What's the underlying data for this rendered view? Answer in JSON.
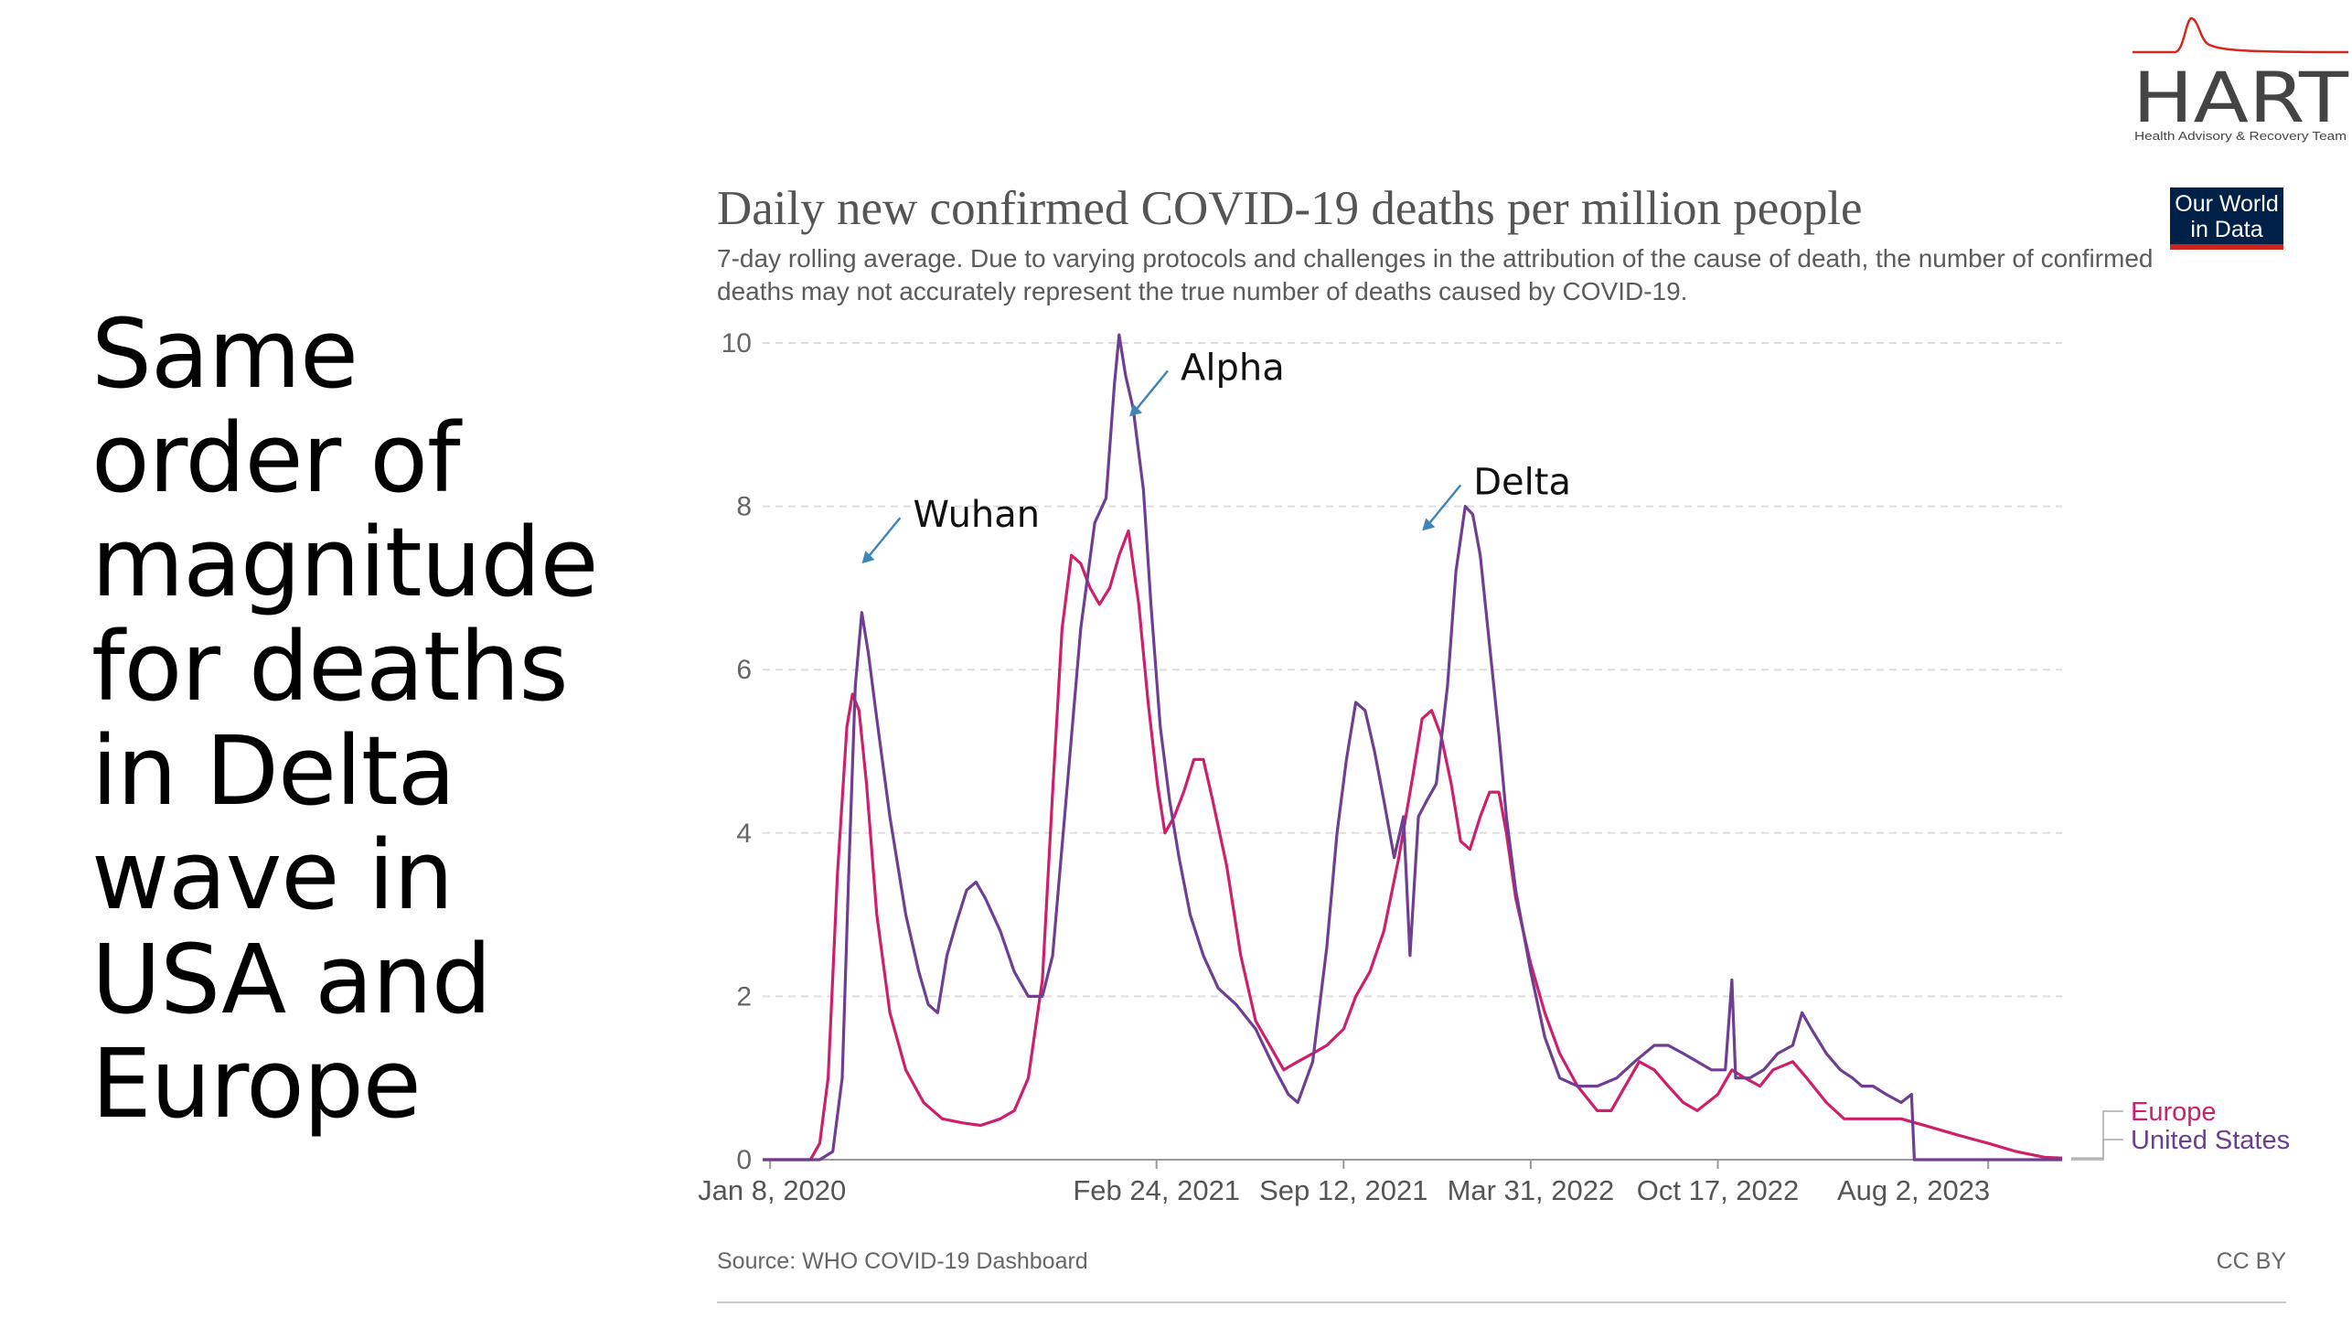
{
  "headline": [
    "Same",
    "order of",
    "magnitude",
    "for deaths",
    "in Delta",
    "wave in",
    "USA and",
    "Europe"
  ],
  "logo": {
    "name": "HART",
    "tagline": "Health Advisory & Recovery Team",
    "color": "#d7261e"
  },
  "owid_badge": [
    "Our World",
    "in Data"
  ],
  "footer": {
    "source": "Source: WHO COVID-19 Dashboard",
    "license": "CC BY"
  },
  "chart_data": {
    "type": "line",
    "title": "Daily new confirmed COVID-19 deaths per million people",
    "subtitle": "7-day rolling average. Due to varying protocols and challenges in the attribution of the cause of death, the number of confirmed deaths may not accurately represent the true number of deaths caused by COVID-19.",
    "xlabel": "",
    "ylabel": "",
    "x_ticks": [
      "Jan 8, 2020",
      "Feb 24, 2021",
      "Sep 12, 2021",
      "Mar 31, 2022",
      "Oct 17, 2022",
      "Aug 2, 2023"
    ],
    "x_tick_dates": [
      "2020-01-08",
      "2021-02-24",
      "2021-09-12",
      "2022-03-31",
      "2022-10-17",
      "2023-08-02"
    ],
    "x_range": [
      "2019-12-31",
      "2023-10-20"
    ],
    "y_ticks": [
      0,
      2,
      4,
      6,
      8,
      10
    ],
    "ylim": [
      0,
      10
    ],
    "grid": "horizontal dashed",
    "legend": "right end of lines",
    "annotations": [
      {
        "text": "Wuhan",
        "date": "2020-04-15",
        "y": 7.3
      },
      {
        "text": "Alpha",
        "date": "2021-01-26",
        "y": 9.1
      },
      {
        "text": "Delta",
        "date": "2021-12-05",
        "y": 7.7
      }
    ],
    "series": [
      {
        "name": "Europe",
        "color": "#ce1f6a",
        "points": [
          [
            "2019-12-31",
            0
          ],
          [
            "2020-02-20",
            0
          ],
          [
            "2020-03-01",
            0.2
          ],
          [
            "2020-03-10",
            1.0
          ],
          [
            "2020-03-20",
            3.5
          ],
          [
            "2020-03-30",
            5.3
          ],
          [
            "2020-04-05",
            5.7
          ],
          [
            "2020-04-12",
            5.5
          ],
          [
            "2020-04-20",
            4.6
          ],
          [
            "2020-05-01",
            3.0
          ],
          [
            "2020-05-15",
            1.8
          ],
          [
            "2020-06-01",
            1.1
          ],
          [
            "2020-06-20",
            0.7
          ],
          [
            "2020-07-10",
            0.5
          ],
          [
            "2020-08-01",
            0.45
          ],
          [
            "2020-08-20",
            0.42
          ],
          [
            "2020-09-10",
            0.5
          ],
          [
            "2020-09-25",
            0.6
          ],
          [
            "2020-10-10",
            1.0
          ],
          [
            "2020-10-25",
            2.2
          ],
          [
            "2020-11-05",
            4.5
          ],
          [
            "2020-11-15",
            6.5
          ],
          [
            "2020-11-25",
            7.4
          ],
          [
            "2020-12-05",
            7.3
          ],
          [
            "2020-12-15",
            7.0
          ],
          [
            "2020-12-25",
            6.8
          ],
          [
            "2021-01-05",
            7.0
          ],
          [
            "2021-01-15",
            7.4
          ],
          [
            "2021-01-25",
            7.7
          ],
          [
            "2021-02-05",
            6.8
          ],
          [
            "2021-02-15",
            5.6
          ],
          [
            "2021-02-25",
            4.6
          ],
          [
            "2021-03-05",
            4.0
          ],
          [
            "2021-03-15",
            4.2
          ],
          [
            "2021-03-25",
            4.5
          ],
          [
            "2021-04-05",
            4.9
          ],
          [
            "2021-04-15",
            4.9
          ],
          [
            "2021-04-25",
            4.4
          ],
          [
            "2021-05-10",
            3.6
          ],
          [
            "2021-05-25",
            2.5
          ],
          [
            "2021-06-10",
            1.7
          ],
          [
            "2021-06-25",
            1.4
          ],
          [
            "2021-07-10",
            1.1
          ],
          [
            "2021-07-25",
            1.2
          ],
          [
            "2021-08-10",
            1.3
          ],
          [
            "2021-08-25",
            1.4
          ],
          [
            "2021-09-12",
            1.6
          ],
          [
            "2021-09-25",
            2.0
          ],
          [
            "2021-10-10",
            2.3
          ],
          [
            "2021-10-25",
            2.8
          ],
          [
            "2021-11-10",
            3.7
          ],
          [
            "2021-11-25",
            4.7
          ],
          [
            "2021-12-05",
            5.4
          ],
          [
            "2021-12-15",
            5.5
          ],
          [
            "2021-12-25",
            5.2
          ],
          [
            "2022-01-05",
            4.6
          ],
          [
            "2022-01-15",
            3.9
          ],
          [
            "2022-01-25",
            3.8
          ],
          [
            "2022-02-05",
            4.2
          ],
          [
            "2022-02-15",
            4.5
          ],
          [
            "2022-02-25",
            4.5
          ],
          [
            "2022-03-05",
            4.0
          ],
          [
            "2022-03-15",
            3.2
          ],
          [
            "2022-03-31",
            2.4
          ],
          [
            "2022-04-15",
            1.8
          ],
          [
            "2022-05-01",
            1.3
          ],
          [
            "2022-05-20",
            0.9
          ],
          [
            "2022-06-10",
            0.6
          ],
          [
            "2022-06-25",
            0.6
          ],
          [
            "2022-07-10",
            0.9
          ],
          [
            "2022-07-25",
            1.2
          ],
          [
            "2022-08-10",
            1.1
          ],
          [
            "2022-08-25",
            0.9
          ],
          [
            "2022-09-10",
            0.7
          ],
          [
            "2022-09-25",
            0.6
          ],
          [
            "2022-10-17",
            0.8
          ],
          [
            "2022-11-01",
            1.1
          ],
          [
            "2022-11-15",
            1.0
          ],
          [
            "2022-12-01",
            0.9
          ],
          [
            "2022-12-15",
            1.1
          ],
          [
            "2023-01-05",
            1.2
          ],
          [
            "2023-01-20",
            1.0
          ],
          [
            "2023-02-10",
            0.7
          ],
          [
            "2023-03-01",
            0.5
          ],
          [
            "2023-04-01",
            0.5
          ],
          [
            "2023-05-01",
            0.5
          ],
          [
            "2023-06-01",
            0.4
          ],
          [
            "2023-07-01",
            0.3
          ],
          [
            "2023-08-02",
            0.2
          ],
          [
            "2023-09-01",
            0.1
          ],
          [
            "2023-10-01",
            0.03
          ],
          [
            "2023-10-20",
            0.02
          ]
        ]
      },
      {
        "name": "United States",
        "color": "#6d3e91",
        "points": [
          [
            "2019-12-31",
            0
          ],
          [
            "2020-03-01",
            0
          ],
          [
            "2020-03-15",
            0.1
          ],
          [
            "2020-03-25",
            1.0
          ],
          [
            "2020-04-01",
            3.5
          ],
          [
            "2020-04-08",
            5.8
          ],
          [
            "2020-04-15",
            6.7
          ],
          [
            "2020-04-22",
            6.2
          ],
          [
            "2020-05-01",
            5.4
          ],
          [
            "2020-05-15",
            4.2
          ],
          [
            "2020-06-01",
            3.0
          ],
          [
            "2020-06-15",
            2.3
          ],
          [
            "2020-06-25",
            1.9
          ],
          [
            "2020-07-05",
            1.8
          ],
          [
            "2020-07-15",
            2.5
          ],
          [
            "2020-07-25",
            2.9
          ],
          [
            "2020-08-05",
            3.3
          ],
          [
            "2020-08-15",
            3.4
          ],
          [
            "2020-08-25",
            3.2
          ],
          [
            "2020-09-10",
            2.8
          ],
          [
            "2020-09-25",
            2.3
          ],
          [
            "2020-10-10",
            2.0
          ],
          [
            "2020-10-25",
            2.0
          ],
          [
            "2020-11-05",
            2.5
          ],
          [
            "2020-11-20",
            4.5
          ],
          [
            "2020-12-05",
            6.5
          ],
          [
            "2020-12-20",
            7.8
          ],
          [
            "2021-01-01",
            8.1
          ],
          [
            "2021-01-10",
            9.5
          ],
          [
            "2021-01-15",
            10.1
          ],
          [
            "2021-01-22",
            9.6
          ],
          [
            "2021-01-30",
            9.2
          ],
          [
            "2021-02-10",
            8.2
          ],
          [
            "2021-02-18",
            6.8
          ],
          [
            "2021-02-28",
            5.3
          ],
          [
            "2021-03-10",
            4.4
          ],
          [
            "2021-03-20",
            3.7
          ],
          [
            "2021-04-01",
            3.0
          ],
          [
            "2021-04-15",
            2.5
          ],
          [
            "2021-05-01",
            2.1
          ],
          [
            "2021-05-20",
            1.9
          ],
          [
            "2021-06-10",
            1.6
          ],
          [
            "2021-07-01",
            1.1
          ],
          [
            "2021-07-15",
            0.8
          ],
          [
            "2021-07-25",
            0.7
          ],
          [
            "2021-08-10",
            1.2
          ],
          [
            "2021-08-25",
            2.6
          ],
          [
            "2021-09-05",
            4.0
          ],
          [
            "2021-09-15",
            4.9
          ],
          [
            "2021-09-25",
            5.6
          ],
          [
            "2021-10-05",
            5.5
          ],
          [
            "2021-10-15",
            5.0
          ],
          [
            "2021-10-25",
            4.4
          ],
          [
            "2021-11-05",
            3.7
          ],
          [
            "2021-11-15",
            4.2
          ],
          [
            "2021-11-22",
            2.5
          ],
          [
            "2021-12-01",
            4.2
          ],
          [
            "2021-12-10",
            4.4
          ],
          [
            "2021-12-20",
            4.6
          ],
          [
            "2022-01-01",
            5.8
          ],
          [
            "2022-01-10",
            7.2
          ],
          [
            "2022-01-20",
            8.0
          ],
          [
            "2022-01-28",
            7.9
          ],
          [
            "2022-02-05",
            7.4
          ],
          [
            "2022-02-15",
            6.3
          ],
          [
            "2022-02-25",
            5.2
          ],
          [
            "2022-03-05",
            4.2
          ],
          [
            "2022-03-15",
            3.3
          ],
          [
            "2022-03-31",
            2.3
          ],
          [
            "2022-04-15",
            1.5
          ],
          [
            "2022-05-01",
            1.0
          ],
          [
            "2022-05-20",
            0.9
          ],
          [
            "2022-06-10",
            0.9
          ],
          [
            "2022-07-01",
            1.0
          ],
          [
            "2022-07-20",
            1.2
          ],
          [
            "2022-08-10",
            1.4
          ],
          [
            "2022-08-25",
            1.4
          ],
          [
            "2022-09-10",
            1.3
          ],
          [
            "2022-09-25",
            1.2
          ],
          [
            "2022-10-10",
            1.1
          ],
          [
            "2022-10-25",
            1.1
          ],
          [
            "2022-11-01",
            2.2
          ],
          [
            "2022-11-05",
            1.0
          ],
          [
            "2022-11-20",
            1.0
          ],
          [
            "2022-12-05",
            1.1
          ],
          [
            "2022-12-20",
            1.3
          ],
          [
            "2023-01-05",
            1.4
          ],
          [
            "2023-01-15",
            1.8
          ],
          [
            "2023-01-25",
            1.6
          ],
          [
            "2023-02-10",
            1.3
          ],
          [
            "2023-02-25",
            1.1
          ],
          [
            "2023-03-10",
            1.0
          ],
          [
            "2023-03-20",
            0.9
          ],
          [
            "2023-04-01",
            0.9
          ],
          [
            "2023-04-15",
            0.8
          ],
          [
            "2023-05-01",
            0.7
          ],
          [
            "2023-05-12",
            0.8
          ],
          [
            "2023-05-15",
            0.0
          ],
          [
            "2023-10-20",
            0.0
          ]
        ]
      }
    ]
  }
}
